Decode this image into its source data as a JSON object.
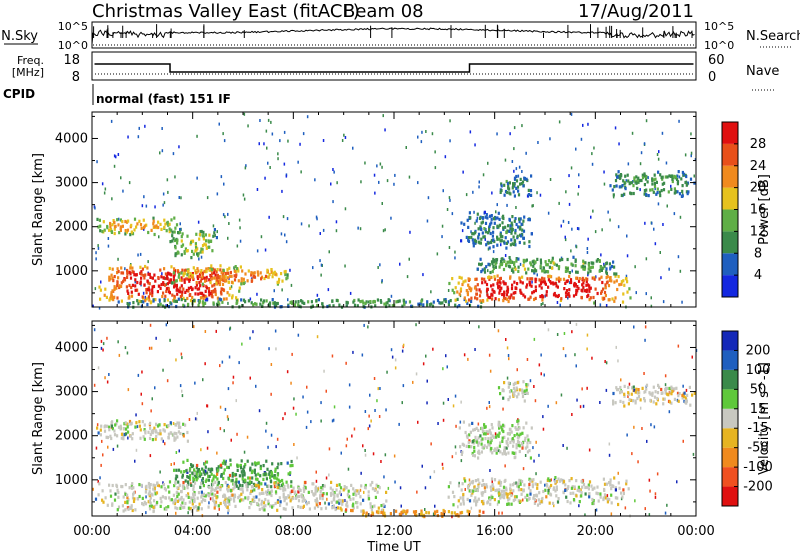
{
  "header": {
    "station": "Christmas Valley East (fitACF)",
    "beam": "Beam 08",
    "date": "17/Aug/2011"
  },
  "noise_panel": {
    "left_label": "N.Sky",
    "right_label": "N.Search",
    "ticks": [
      "10^5",
      "10^0"
    ]
  },
  "freq_panel": {
    "left_label_1": "Freq.",
    "left_label_2": "[MHz]",
    "left_ticks": [
      "18",
      "8"
    ],
    "right_ticks": [
      "60",
      "0"
    ],
    "right_label": "Nave"
  },
  "cpid": {
    "label": "CPID",
    "value": "normal (fast) 151 IF"
  },
  "colors": {
    "power": [
      "#1428e0",
      "#1f5fbf",
      "#3a8a4a",
      "#5fae46",
      "#e6c21e",
      "#f08a1e",
      "#e8501a",
      "#e01010"
    ],
    "velocity": [
      "#e01010",
      "#f05020",
      "#f08a1e",
      "#e6b422",
      "#c8c8c0",
      "#5fc83a",
      "#3a8a4a",
      "#1f5fbf",
      "#1428b8"
    ]
  },
  "chart_data": [
    {
      "type": "heatmap",
      "quantity": "Power",
      "xlabel": "",
      "ylabel": "Slant Range [km]",
      "xlim": [
        0,
        24
      ],
      "ylim": [
        180,
        4600
      ],
      "x_ticks": [
        "00:00",
        "04:00",
        "08:00",
        "12:00",
        "16:00",
        "20:00",
        "00:00"
      ],
      "y_ticks": [
        1000,
        2000,
        3000,
        4000
      ],
      "colorbar": {
        "label": "Power [dB]",
        "ticks": [
          4,
          8,
          12,
          16,
          20,
          24,
          28
        ],
        "range": [
          0,
          32
        ]
      },
      "regions": [
        {
          "t": [
            0.0,
            6.0
          ],
          "r": [
            300,
            1200
          ],
          "level": 26
        },
        {
          "t": [
            3.0,
            8.0
          ],
          "r": [
            700,
            1100
          ],
          "level": 20
        },
        {
          "t": [
            0.0,
            3.5
          ],
          "r": [
            1850,
            2250
          ],
          "level": 18
        },
        {
          "t": [
            3.0,
            5.0
          ],
          "r": [
            1300,
            2000
          ],
          "level": 14
        },
        {
          "t": [
            0.0,
            16.0
          ],
          "r": [
            200,
            400
          ],
          "level": 10
        },
        {
          "t": [
            14.0,
            21.5
          ],
          "r": [
            300,
            950
          ],
          "level": 27
        },
        {
          "t": [
            15.0,
            21.0
          ],
          "r": [
            950,
            1350
          ],
          "level": 12
        },
        {
          "t": [
            14.5,
            17.5
          ],
          "r": [
            1500,
            2400
          ],
          "level": 8
        },
        {
          "t": [
            16.0,
            17.5
          ],
          "r": [
            2700,
            3200
          ],
          "level": 8
        },
        {
          "t": [
            20.5,
            24.0
          ],
          "r": [
            2700,
            3300
          ],
          "level": 10
        }
      ]
    },
    {
      "type": "heatmap",
      "quantity": "Velocity",
      "xlabel": "Time UT",
      "ylabel": "Slant Range [km]",
      "xlim": [
        0,
        24
      ],
      "ylim": [
        180,
        4600
      ],
      "x_ticks": [
        "00:00",
        "04:00",
        "08:00",
        "12:00",
        "16:00",
        "20:00",
        "00:00"
      ],
      "y_ticks": [
        1000,
        2000,
        3000,
        4000
      ],
      "colorbar": {
        "label": "Velocity [m s^-1]",
        "ticks": [
          200,
          100,
          50,
          15,
          -15,
          -50,
          -100,
          -200
        ],
        "range": [
          -250,
          250
        ]
      },
      "regions": [
        {
          "t": [
            0.0,
            4.0
          ],
          "r": [
            1900,
            2400
          ],
          "v": 0
        },
        {
          "t": [
            3.0,
            8.0
          ],
          "r": [
            800,
            1500
          ],
          "v": 35
        },
        {
          "t": [
            0.0,
            12.0
          ],
          "r": [
            300,
            1000
          ],
          "v": 0
        },
        {
          "t": [
            10.0,
            16.0
          ],
          "r": [
            200,
            350
          ],
          "v": -40
        },
        {
          "t": [
            14.0,
            21.5
          ],
          "r": [
            450,
            1100
          ],
          "v": 0
        },
        {
          "t": [
            14.5,
            17.5
          ],
          "r": [
            1500,
            2400
          ],
          "v": 5
        },
        {
          "t": [
            16.0,
            17.5
          ],
          "r": [
            2800,
            3300
          ],
          "v": 0
        },
        {
          "t": [
            20.5,
            24.0
          ],
          "r": [
            2700,
            3200
          ],
          "v": -5
        }
      ]
    }
  ]
}
